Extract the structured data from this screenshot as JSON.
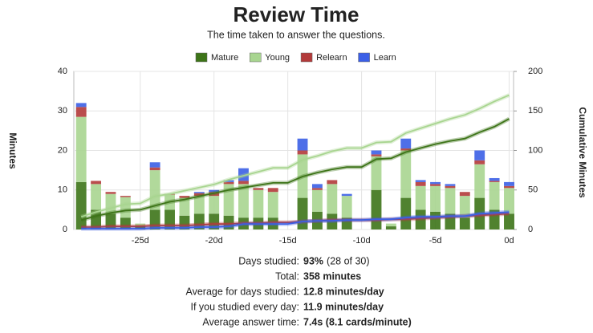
{
  "chart_data": {
    "type": "bar",
    "title": "Review Time",
    "subtitle": "The time taken to answer the questions.",
    "ylabel": "Minutes",
    "y2label": "Cumulative Minutes",
    "x": [
      -29,
      -28,
      -27,
      -26,
      -25,
      -24,
      -23,
      -22,
      -21,
      -20,
      -19,
      -18,
      -17,
      -16,
      -15,
      -14,
      -13,
      -12,
      -11,
      -10,
      -9,
      -8,
      -7,
      -6,
      -5,
      -4,
      -3,
      -2,
      -1,
      0
    ],
    "series": [
      {
        "name": "Mature",
        "color": "#3d7418",
        "values": [
          12,
          5,
          4,
          3,
          1,
          5,
          5,
          3.5,
          4,
          4,
          3.5,
          3,
          3,
          3,
          0,
          8,
          4.5,
          4,
          3,
          0,
          10,
          0.8,
          8,
          5,
          4.5,
          4,
          3,
          8,
          5,
          4
        ]
      },
      {
        "name": "Young",
        "color": "#a8d590",
        "values": [
          16.5,
          6.5,
          5,
          5.2,
          0.5,
          10,
          3.8,
          4.5,
          4.5,
          4.5,
          8,
          8.5,
          7,
          6.5,
          0,
          11,
          5.5,
          7.5,
          5.5,
          0,
          8.5,
          0.7,
          12,
          6,
          6.5,
          6.5,
          5.5,
          8.5,
          7,
          6.5
        ]
      },
      {
        "name": "Relearn",
        "color": "#b23a3a",
        "values": [
          2.5,
          0.8,
          0.5,
          0.3,
          0,
          0.7,
          0.2,
          0.5,
          0.7,
          1,
          0.5,
          0.8,
          0.5,
          1,
          0,
          1,
          0.5,
          1,
          0,
          0,
          0.5,
          0,
          0.5,
          1,
          0.5,
          0.5,
          1,
          1,
          0.3,
          0.5
        ]
      },
      {
        "name": "Learn",
        "color": "#3b5fe6",
        "values": [
          1,
          0,
          0,
          0,
          0,
          1.3,
          0,
          0,
          0.3,
          0.5,
          0.5,
          3.2,
          0,
          0,
          0,
          3,
          1,
          0,
          0.5,
          0,
          1,
          0,
          2.5,
          0.5,
          0.5,
          0.5,
          0,
          2.5,
          0.7,
          1
        ]
      }
    ],
    "cumulative": [
      {
        "color": "#3d7418",
        "axis": "y2",
        "values": [
          12,
          17,
          21,
          24,
          25,
          30,
          35,
          38,
          42,
          46,
          50,
          53,
          56,
          59,
          59,
          67,
          72,
          76,
          79,
          79,
          89,
          90,
          98,
          103,
          108,
          112,
          115,
          123,
          130,
          140
        ]
      },
      {
        "color": "#a8d590",
        "axis": "y2",
        "values": [
          16,
          22,
          27,
          32,
          33,
          42,
          45,
          49,
          53,
          57,
          63,
          68,
          73,
          78,
          78,
          88,
          93,
          99,
          103,
          103,
          110,
          111,
          122,
          128,
          134,
          140,
          145,
          153,
          162,
          170
        ]
      },
      {
        "color": "#b23a3a",
        "axis": "y2",
        "values": [
          3,
          3,
          4,
          4,
          4,
          5,
          5,
          5,
          6,
          7,
          7,
          8,
          8,
          9,
          9,
          10,
          11,
          12,
          12,
          12,
          12,
          13,
          13,
          14,
          15,
          16,
          17,
          18,
          19,
          20
        ]
      },
      {
        "color": "#3b5fe6",
        "axis": "y2",
        "values": [
          1,
          1,
          1,
          1,
          1,
          2,
          2,
          2,
          3,
          3,
          4,
          7,
          7,
          7,
          7,
          10,
          11,
          11,
          12,
          12,
          13,
          13,
          15,
          16,
          16,
          17,
          17,
          20,
          21,
          22
        ]
      }
    ],
    "xlim": [
      -29.5,
      0.3
    ],
    "xticks": [
      {
        "value": -25,
        "label": "-25d"
      },
      {
        "value": -20,
        "label": "-20d"
      },
      {
        "value": -15,
        "label": "-15d"
      },
      {
        "value": -10,
        "label": "-10d"
      },
      {
        "value": -5,
        "label": "-5d"
      },
      {
        "value": 0,
        "label": "0d"
      }
    ],
    "ylim": [
      0,
      40
    ],
    "yticks": [
      0,
      10,
      20,
      30,
      40
    ],
    "y2lim": [
      0,
      200
    ],
    "y2ticks": [
      0,
      50,
      100,
      150,
      200
    ],
    "grid": true,
    "legend": "top"
  },
  "stats": [
    {
      "label": "Days studied:",
      "value": "93%",
      "note": "(28 of 30)"
    },
    {
      "label": "Total:",
      "value": "358 minutes"
    },
    {
      "label": "Average for days studied:",
      "value": "12.8 minutes/day"
    },
    {
      "label": "If you studied every day:",
      "value": "11.9 minutes/day"
    },
    {
      "label": "Average answer time:",
      "value": "7.4s (8.1 cards/minute)"
    }
  ]
}
